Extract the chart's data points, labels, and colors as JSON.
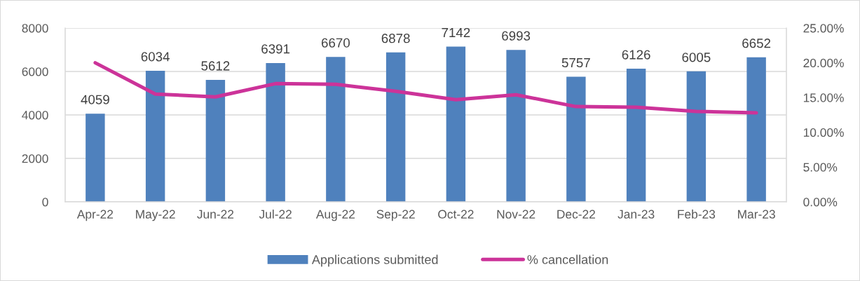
{
  "chart_data": {
    "type": "bar",
    "categories": [
      "Apr-22",
      "May-22",
      "Jun-22",
      "Jul-22",
      "Aug-22",
      "Sep-22",
      "Oct-22",
      "Nov-22",
      "Dec-22",
      "Jan-23",
      "Feb-23",
      "Mar-23"
    ],
    "series": [
      {
        "name": "Applications submitted",
        "color": "#4f81bd",
        "values": [
          4059,
          6034,
          5612,
          6391,
          6670,
          6878,
          7142,
          6993,
          5757,
          6126,
          6005,
          6652
        ],
        "value_labels": [
          "4059",
          "6034",
          "5612",
          "6391",
          "6670",
          "6878",
          "7142",
          "6993",
          "5757",
          "6126",
          "6005",
          "6652"
        ]
      },
      {
        "name": "% cancellation",
        "type": "line",
        "axis": "y2",
        "color": "#cc3399",
        "values": [
          20.0,
          15.5,
          15.1,
          17.0,
          16.9,
          15.9,
          14.7,
          15.4,
          13.7,
          13.6,
          13.0,
          12.8
        ]
      }
    ],
    "ylim": [
      0,
      8000
    ],
    "yticks": [
      0,
      2000,
      4000,
      6000,
      8000
    ],
    "y2lim": [
      0,
      25
    ],
    "y2ticks": [
      {
        "value": 0,
        "label": "0.00%"
      },
      {
        "value": 5,
        "label": "5.00%"
      },
      {
        "value": 10,
        "label": "10.00%"
      },
      {
        "value": 15,
        "label": "15.00%"
      },
      {
        "value": 20,
        "label": "20.00%"
      },
      {
        "value": 25,
        "label": "25.00%"
      }
    ],
    "grid": "y",
    "legend": "bottom",
    "line_style": "solid"
  }
}
